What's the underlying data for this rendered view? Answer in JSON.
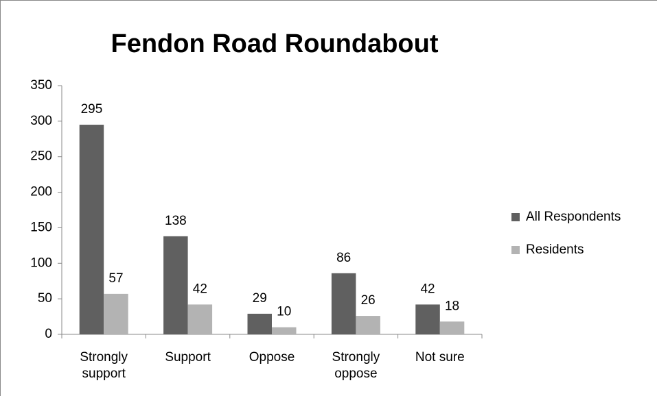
{
  "chart_data": {
    "type": "bar",
    "title": "Fendon Road Roundabout",
    "categories": [
      "Strongly support",
      "Support",
      "Oppose",
      "Strongly oppose",
      "Not sure"
    ],
    "series": [
      {
        "name": "All Respondents",
        "color": "#606060",
        "values": [
          295,
          138,
          29,
          86,
          42
        ]
      },
      {
        "name": "Residents",
        "color": "#b3b3b3",
        "values": [
          57,
          42,
          10,
          26,
          18
        ]
      }
    ],
    "ylim": [
      0,
      350
    ],
    "yticks": [
      0,
      50,
      100,
      150,
      200,
      250,
      300,
      350
    ],
    "grid": false,
    "legend": "right"
  }
}
